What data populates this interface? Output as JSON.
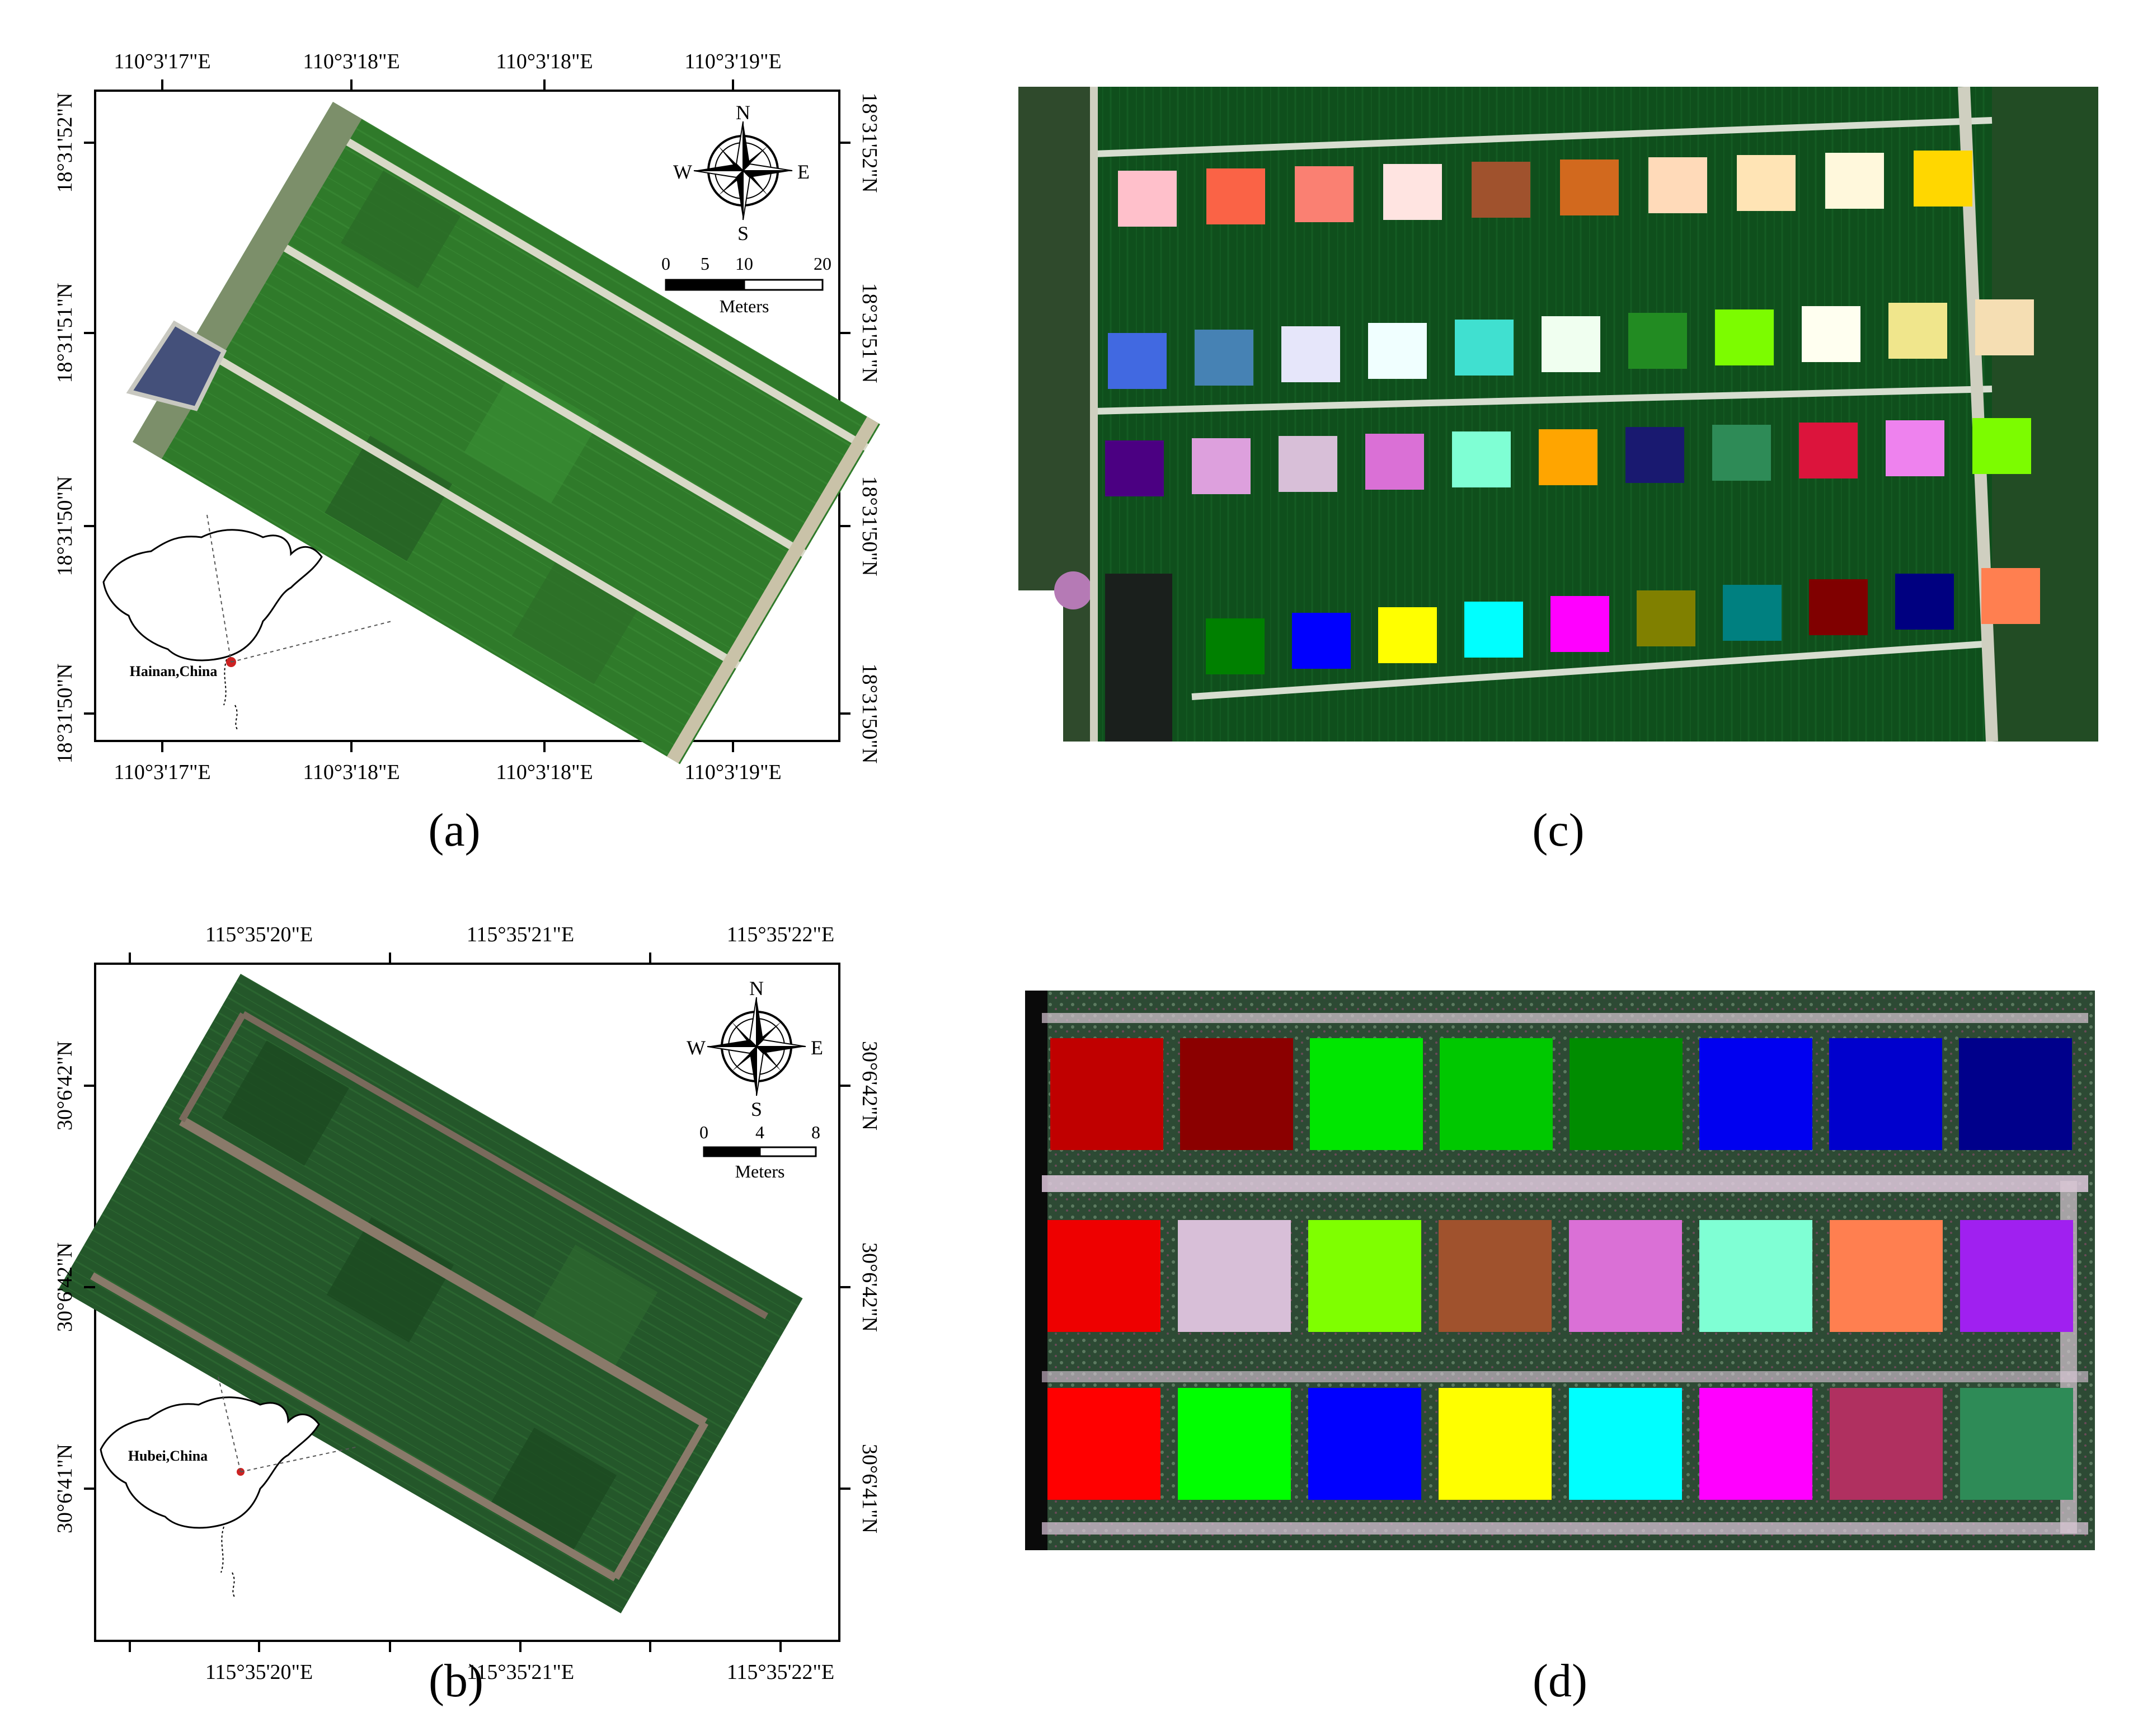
{
  "panels": {
    "a": {
      "caption": "(a)",
      "top_ticks": [
        "110°3'17\"E",
        "110°3'18\"E",
        "110°3'18\"E",
        "110°3'19\"E"
      ],
      "bottom_ticks": [
        "110°3'17\"E",
        "110°3'18\"E",
        "110°3'18\"E",
        "110°3'19\"E"
      ],
      "left_ticks": [
        "18°31'52\"N",
        "18°31'51\"N",
        "18°31'50\"N",
        "18°31'50\"N"
      ],
      "right_ticks": [
        "18°31'52\"N",
        "18°31'51\"N",
        "18°31'50\"N",
        "18°31'50\"N"
      ],
      "compass": {
        "n": "N",
        "s": "S",
        "e": "E",
        "w": "W"
      },
      "scale": {
        "labels": [
          "0",
          "5",
          "10",
          "20"
        ],
        "unit": "Meters"
      },
      "inset_label": "Hainan,China"
    },
    "b": {
      "caption": "(b)",
      "top_ticks": [
        "115°35'20\"E",
        "115°35'21\"E",
        "115°35'22\"E"
      ],
      "bottom_ticks": [
        "115°35'20\"E",
        "115°35'21\"E",
        "115°35'22\"E"
      ],
      "left_ticks": [
        "30°6'42\"N",
        "30°6'42\"N",
        "30°6'41\"N"
      ],
      "right_ticks": [
        "30°6'42\"N",
        "30°6'42\"N",
        "30°6'41\"N"
      ],
      "compass": {
        "n": "N",
        "s": "S",
        "e": "E",
        "w": "W"
      },
      "scale": {
        "labels": [
          "0",
          "4",
          "8"
        ],
        "unit": "Meters"
      },
      "inset_label": "Hubei,China"
    },
    "c": {
      "caption": "(c)",
      "rows": [
        [
          "#ffc0cb",
          "#fa6346",
          "#fa8072",
          "#ffe4e1",
          "#a0522d",
          "#d2691e",
          "#ffdab9",
          "#ffe4b5",
          "#fff8dc",
          "#ffd700"
        ],
        [
          "#4169e1",
          "#4682b4",
          "#e6e6fa",
          "#f0ffff",
          "#40e0d0",
          "#f0fff0",
          "#228b22",
          "#7cfc00",
          "#fffff0",
          "#f0e68c",
          "#f5deb3"
        ],
        [
          "#4b0082",
          "#dda0dd",
          "#d8bfd8",
          "#da70d6",
          "#7fffd4",
          "#ffa500",
          "#191970",
          "#2e8b57",
          "#dc143c",
          "#ee82ee",
          "#7cfc00"
        ],
        [
          "#008000",
          "#0000ff",
          "#ffff00",
          "#00ffff",
          "#ff00ff",
          "#808000",
          "#008080",
          "#800000",
          "#000080",
          "#ff7f50"
        ]
      ]
    },
    "d": {
      "caption": "(d)",
      "rows": [
        [
          "#c00000",
          "#8b0000",
          "#00e600",
          "#00c800",
          "#008c00",
          "#0000f0",
          "#0000cd",
          "#00008b"
        ],
        [
          "#ee0000",
          "#d8bfd8",
          "#7fff00",
          "#a0522d",
          "#da70d6",
          "#7fffd4",
          "#ff7f50",
          "#a020f0"
        ],
        [
          "#ff0000",
          "#00ff00",
          "#0000ff",
          "#ffff00",
          "#00ffff",
          "#ff00ff",
          "#b03060",
          "#2e8b57"
        ]
      ]
    }
  }
}
